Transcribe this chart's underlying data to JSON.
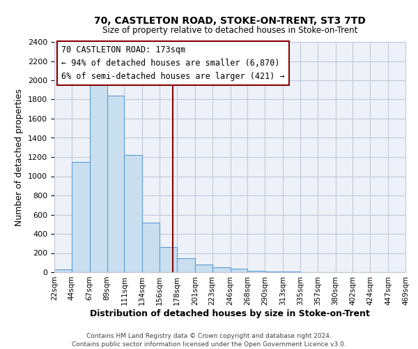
{
  "title": "70, CASTLETON ROAD, STOKE-ON-TRENT, ST3 7TD",
  "subtitle": "Size of property relative to detached houses in Stoke-on-Trent",
  "xlabel": "Distribution of detached houses by size in Stoke-on-Trent",
  "ylabel": "Number of detached properties",
  "bin_edges": [
    22,
    44,
    67,
    89,
    111,
    134,
    156,
    178,
    201,
    223,
    246,
    268,
    290,
    313,
    335,
    357,
    380,
    402,
    424,
    447,
    469
  ],
  "bar_heights": [
    30,
    1150,
    1950,
    1840,
    1220,
    520,
    265,
    148,
    80,
    50,
    38,
    12,
    8,
    4,
    2,
    0,
    2,
    0,
    0,
    0
  ],
  "bar_color": "#c9dff0",
  "bar_edge_color": "#5b9bd5",
  "grid_color": "#c0c8d8",
  "background_color": "#eef2f8",
  "vline_x": 173,
  "vline_color": "#8b0000",
  "annotation_title": "70 CASTLETON ROAD: 173sqm",
  "annotation_line1": "← 94% of detached houses are smaller (6,870)",
  "annotation_line2": "6% of semi-detached houses are larger (421) →",
  "footer_line1": "Contains HM Land Registry data © Crown copyright and database right 2024.",
  "footer_line2": "Contains public sector information licensed under the Open Government Licence v3.0.",
  "ylim": [
    0,
    2400
  ],
  "yticks": [
    0,
    200,
    400,
    600,
    800,
    1000,
    1200,
    1400,
    1600,
    1800,
    2000,
    2200,
    2400
  ],
  "tick_labels": [
    "22sqm",
    "44sqm",
    "67sqm",
    "89sqm",
    "111sqm",
    "134sqm",
    "156sqm",
    "178sqm",
    "201sqm",
    "223sqm",
    "246sqm",
    "268sqm",
    "290sqm",
    "313sqm",
    "335sqm",
    "357sqm",
    "380sqm",
    "402sqm",
    "424sqm",
    "447sqm",
    "469sqm"
  ]
}
